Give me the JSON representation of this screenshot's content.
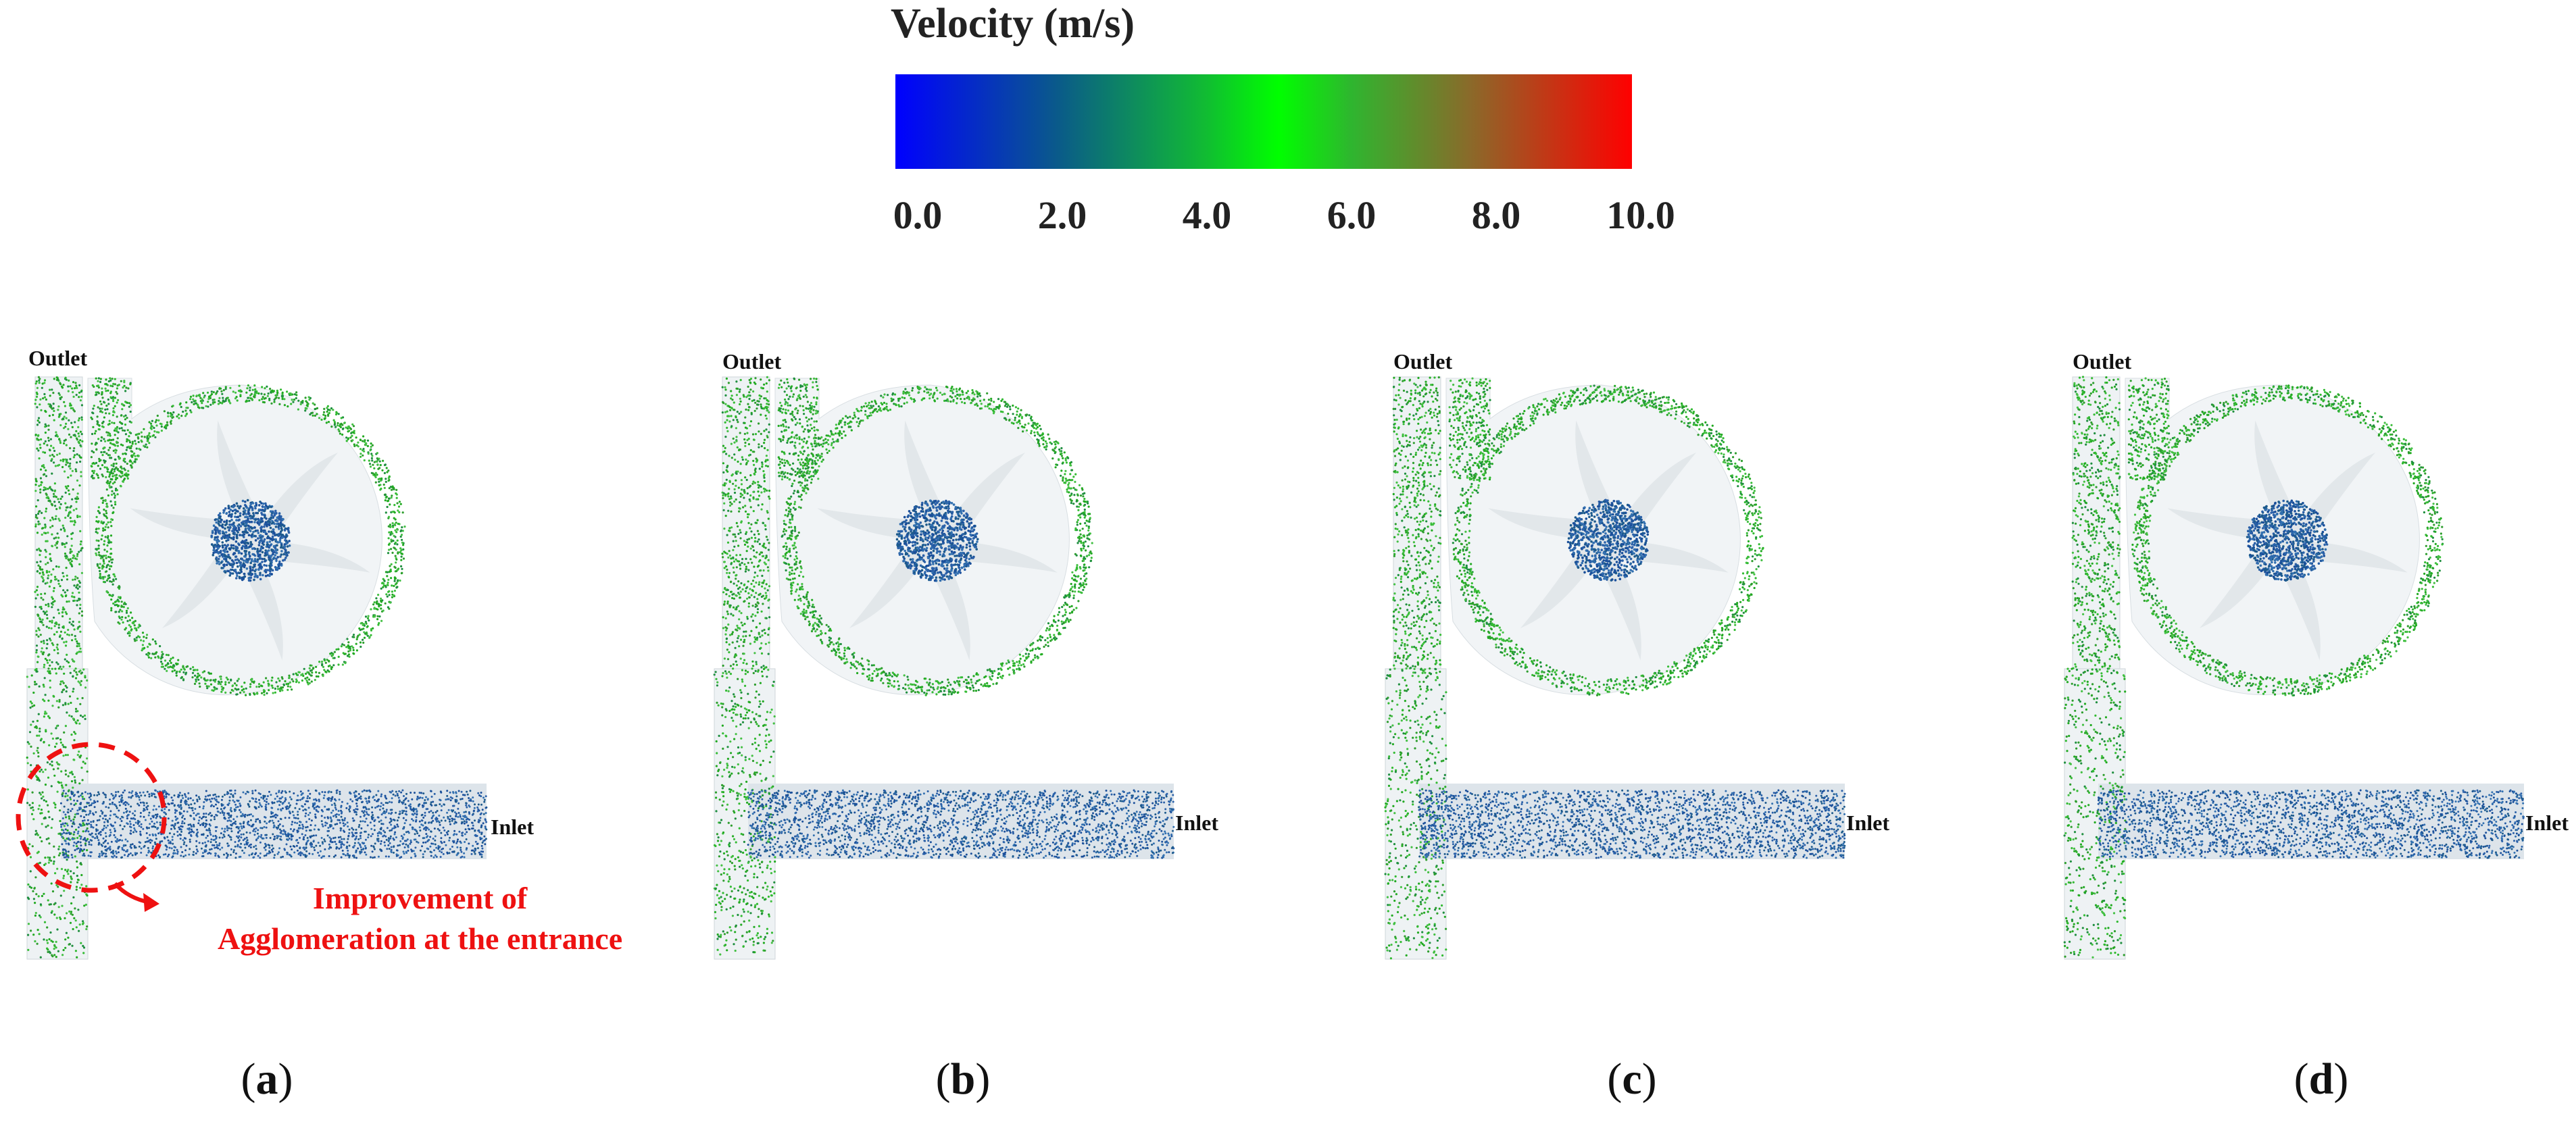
{
  "colorbar": {
    "title": "Velocity (m/s)",
    "ticks": [
      "0.0",
      "2.0",
      "4.0",
      "6.0",
      "8.0",
      "10.0"
    ],
    "range": [
      0.0,
      10.0
    ],
    "colors": [
      "#0000ff",
      "#00ff00",
      "#ff0000"
    ]
  },
  "panels": [
    {
      "id": "a",
      "caption": "a",
      "outlet_label": "Outlet",
      "inlet_label": "Inlet"
    },
    {
      "id": "b",
      "caption": "b",
      "outlet_label": "Outlet",
      "inlet_label": "Inlet"
    },
    {
      "id": "c",
      "caption": "c",
      "outlet_label": "Outlet",
      "inlet_label": "Inlet"
    },
    {
      "id": "d",
      "caption": "d",
      "outlet_label": "Outlet",
      "inlet_label": "Inlet"
    }
  ],
  "annotation": {
    "line1": "Improvement of",
    "line2": "Agglomeration at the entrance",
    "color": "#ee1111"
  }
}
